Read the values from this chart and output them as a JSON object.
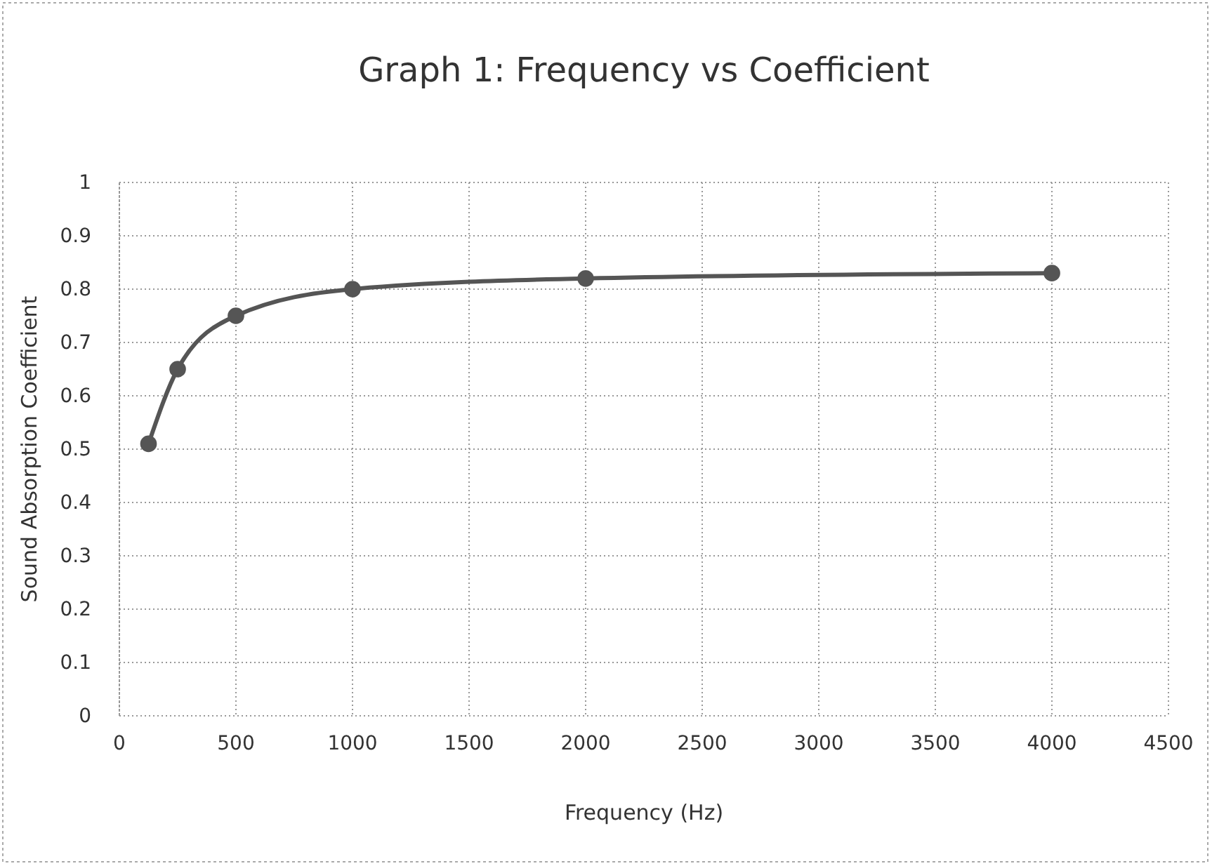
{
  "chart_data": {
    "type": "line",
    "title": "Graph 1: Frequency vs Coefficient",
    "xlabel": "Frequency (Hz)",
    "ylabel": "Sound Absorption Coefficient",
    "x": [
      125,
      250,
      500,
      1000,
      2000,
      4000
    ],
    "series": [
      {
        "color": "#555555",
        "values": [
          0.51,
          0.65,
          0.75,
          0.8,
          0.82,
          0.83
        ]
      }
    ],
    "xlim": [
      0,
      4500
    ],
    "xticks": [
      0,
      500,
      1000,
      1500,
      2000,
      2500,
      3000,
      3500,
      4000,
      4500
    ],
    "ylim": [
      0,
      1
    ],
    "yticks": [
      0,
      0.1,
      0.2,
      0.3,
      0.4,
      0.5,
      0.6,
      0.7,
      0.8,
      0.9,
      1
    ],
    "grid": true,
    "marker": "circle",
    "line_style": "solid"
  }
}
